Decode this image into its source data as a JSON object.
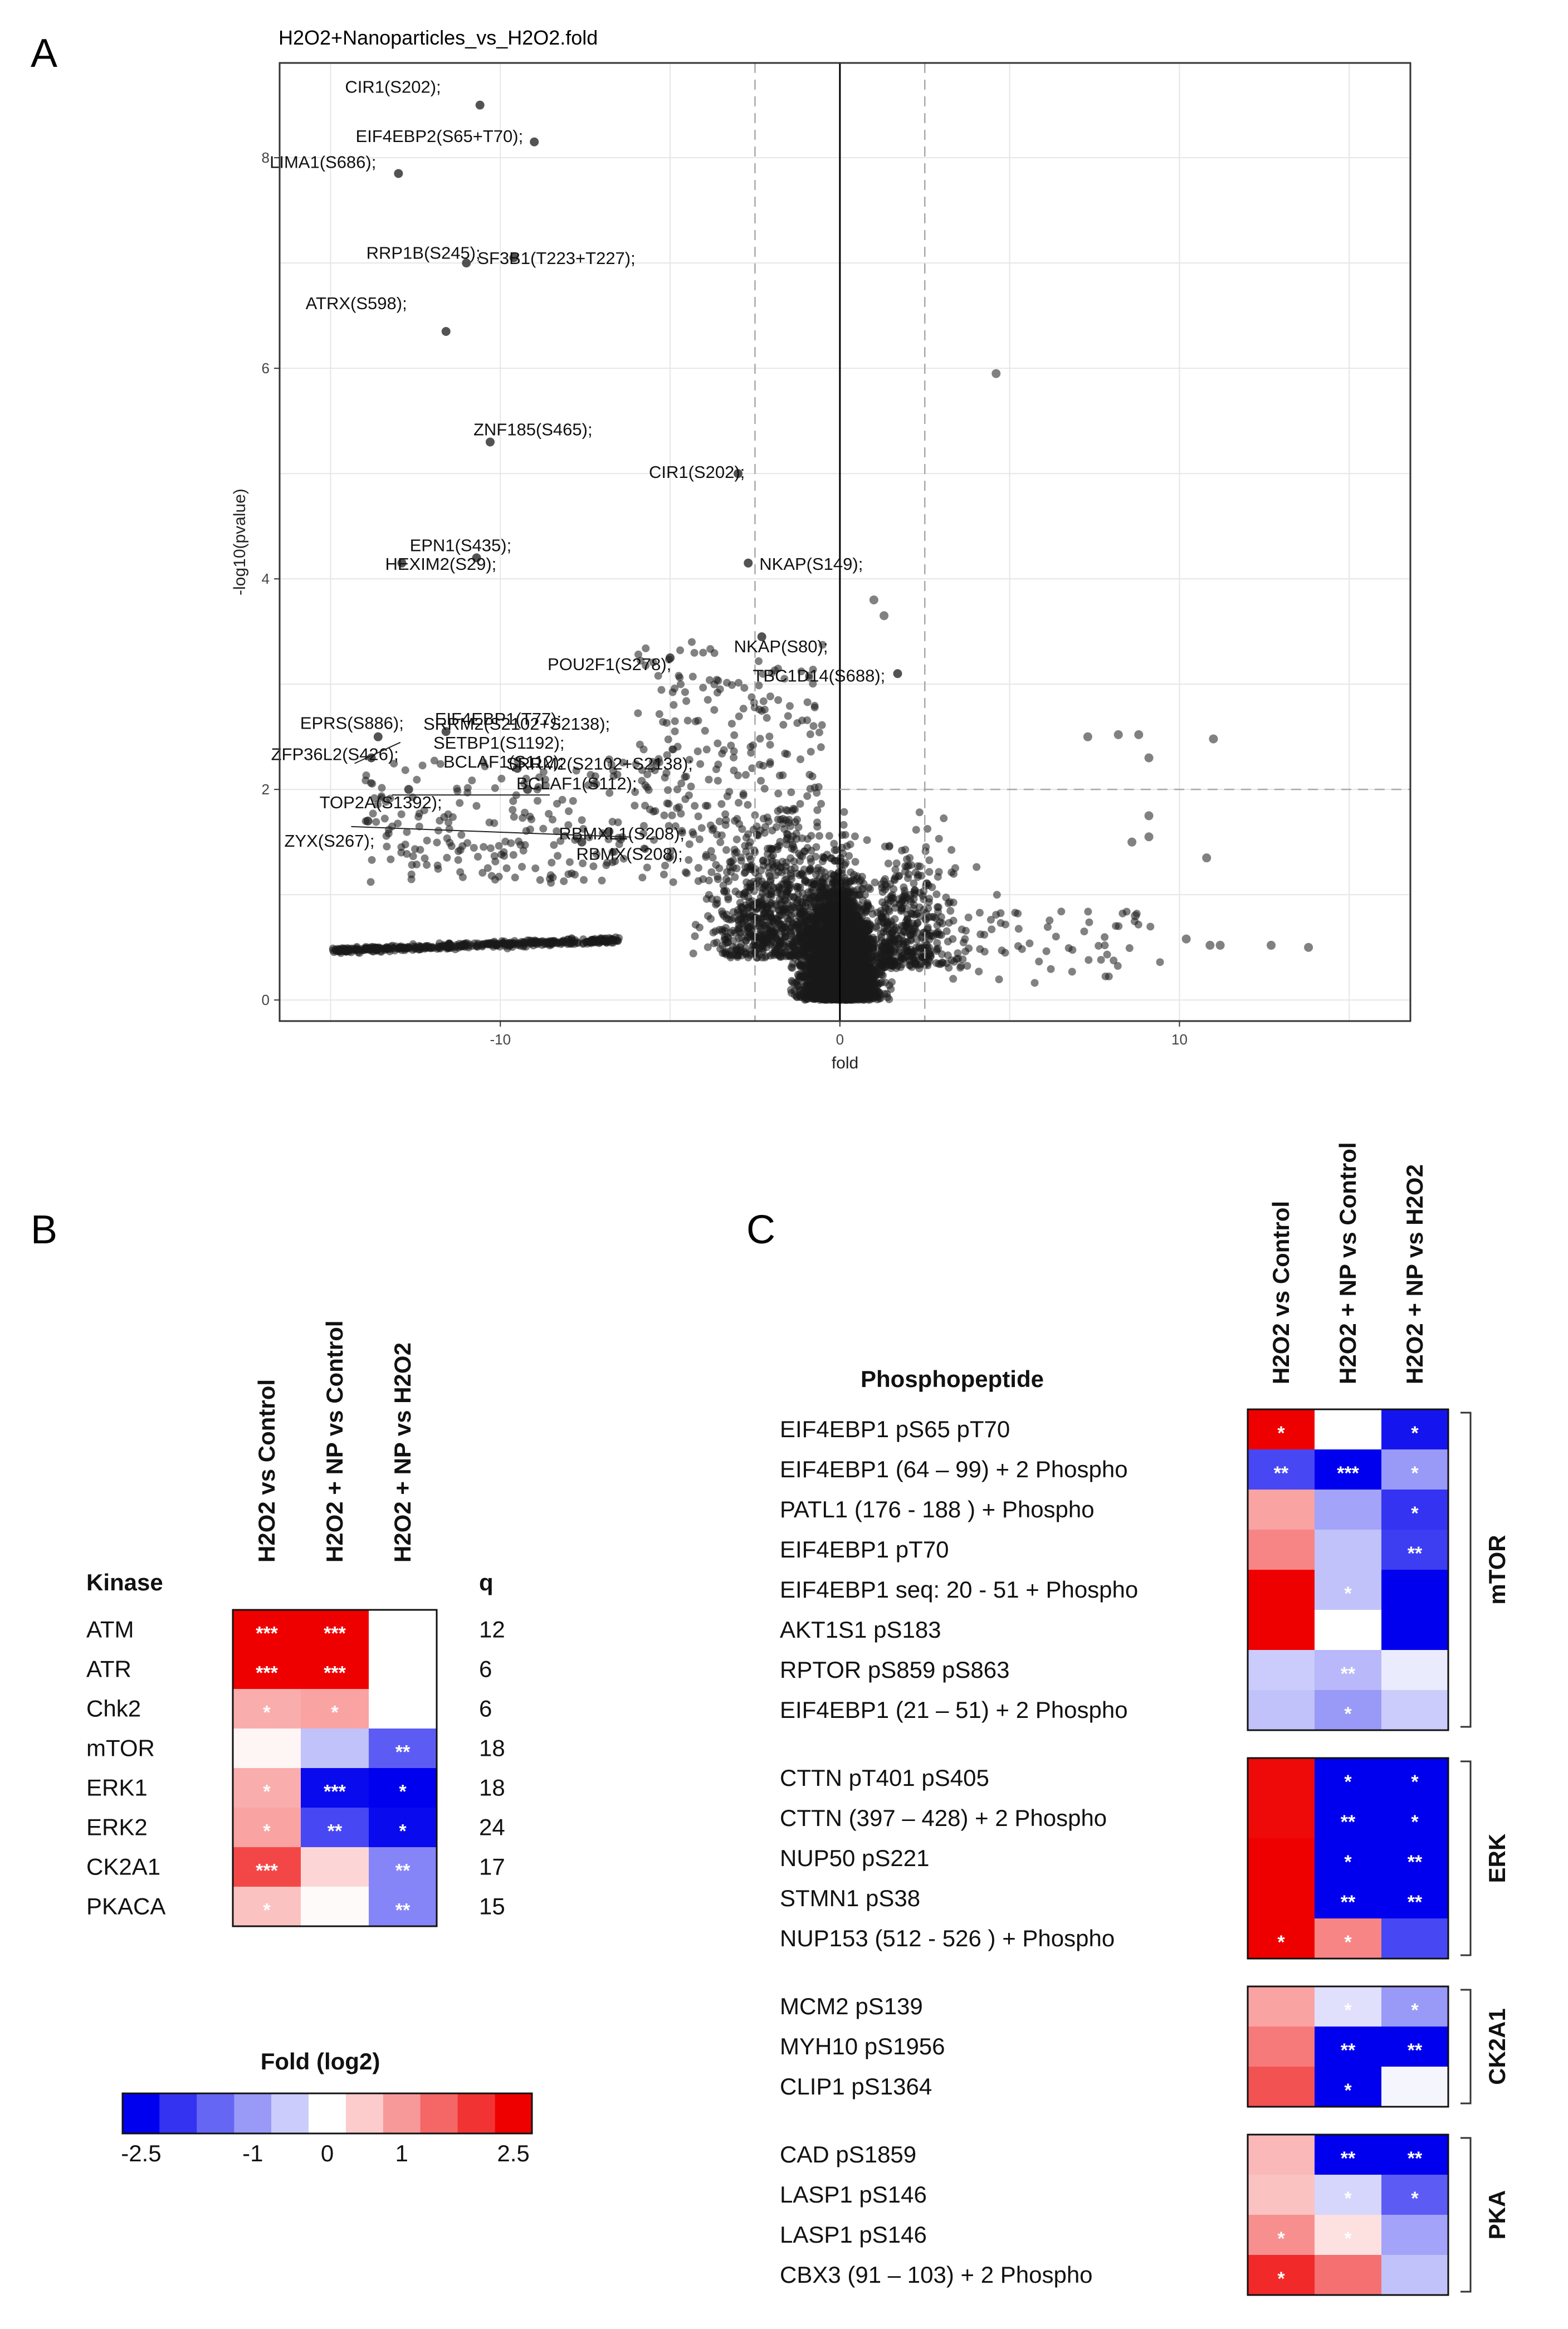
{
  "panels": {
    "a": "A",
    "b": "B",
    "c": "C"
  },
  "chart_data": [
    {
      "type": "scatter",
      "title": "H2O2+Nanoparticles_vs_H2O2.fold",
      "xlabel": "fold",
      "ylabel": "-log10(pvalue)",
      "xlim": [
        -16.5,
        16.8
      ],
      "ylim": [
        -0.2,
        8.9
      ],
      "xticks": [
        -10,
        0,
        10
      ],
      "yticks": [
        0,
        2,
        4,
        6,
        8
      ],
      "vlines": [
        -2.5,
        0,
        2.5
      ],
      "hline": 2,
      "labeled_points": [
        {
          "label": "CIR1(S202);",
          "x": -10.6,
          "y": 8.5
        },
        {
          "label": "LIMA1(S686);",
          "x": -13.0,
          "y": 7.85
        },
        {
          "label": "EIF4EBP2(S65+T70);",
          "x": -9.0,
          "y": 8.15
        },
        {
          "label": "RRP1B(S245);",
          "x": -9.6,
          "y": 7.05
        },
        {
          "label": "SF3B1(T223+T227);",
          "x": -11.0,
          "y": 7.0
        },
        {
          "label": "ATRX(S598);",
          "x": -11.6,
          "y": 6.35
        },
        {
          "label": "ZNF185(S465);",
          "x": -10.3,
          "y": 5.3
        },
        {
          "label": "CIR1(S202);",
          "x": -3.0,
          "y": 5.0
        },
        {
          "label": "EPN1(S435);",
          "x": -10.7,
          "y": 4.2
        },
        {
          "label": "HEXIM2(S29);",
          "x": -12.9,
          "y": 4.15
        },
        {
          "label": "NKAP(S149);",
          "x": -2.7,
          "y": 4.15
        },
        {
          "label": "NKAP(S80);",
          "x": -2.3,
          "y": 3.45
        },
        {
          "label": "POU2F1(S278);",
          "x": -5.0,
          "y": 3.25
        },
        {
          "label": "TBC1D14(S688);",
          "x": 1.7,
          "y": 3.1
        },
        {
          "label": "EPRS(S886);",
          "x": -13.6,
          "y": 2.5
        },
        {
          "label": "EIF4EBP1(T77);",
          "x": -11.6,
          "y": 2.55
        },
        {
          "label": "ZFP36L2(S426);",
          "x": -13.8,
          "y": 2.3
        },
        {
          "label": "SRRM2(S2102+S2138);",
          "x": -9.5,
          "y": 2.2
        },
        {
          "label": "BCLAF1(S112);",
          "x": -9.2,
          "y": 2.0
        },
        {
          "label": "TOP2A(S1392);",
          "x": -12.7,
          "y": 2.0
        },
        {
          "label": "ZYX(S267);",
          "x": -13.9,
          "y": 1.7
        },
        {
          "label": "RBMXL1(S208);",
          "x": -6.8,
          "y": 1.6
        },
        {
          "label": "RBMX(S208);",
          "x": -7.6,
          "y": 1.5
        }
      ],
      "overlap_labels": [
        "SRRM2(S2102+S2138);",
        "SETBP1(S1192);",
        "BCLAF1(S112);"
      ],
      "extra_points": [
        {
          "x": 4.6,
          "y": 5.95
        },
        {
          "x": 1.3,
          "y": 3.65
        },
        {
          "x": 1.0,
          "y": 3.8
        },
        {
          "x": 7.3,
          "y": 2.5
        },
        {
          "x": 8.2,
          "y": 2.52
        },
        {
          "x": 8.8,
          "y": 2.52
        },
        {
          "x": 9.1,
          "y": 2.3
        },
        {
          "x": 11.0,
          "y": 2.48
        },
        {
          "x": 9.1,
          "y": 1.75
        },
        {
          "x": 8.6,
          "y": 1.5
        },
        {
          "x": 9.1,
          "y": 1.55
        },
        {
          "x": 10.8,
          "y": 1.35
        },
        {
          "x": 8.7,
          "y": 0.8
        },
        {
          "x": 13.8,
          "y": 0.5
        },
        {
          "x": 12.7,
          "y": 0.52
        },
        {
          "x": 10.9,
          "y": 0.52
        },
        {
          "x": 11.2,
          "y": 0.52
        },
        {
          "x": 10.2,
          "y": 0.58
        }
      ]
    },
    {
      "type": "heatmap",
      "name": "kinase",
      "row_header": "Kinase",
      "q_header": "q",
      "columns": [
        "H2O2 vs Control",
        "H2O2 + NP vs Control",
        "H2O2 + NP  vs H2O2"
      ],
      "rows": [
        "ATM",
        "ATR",
        "Chk2",
        "mTOR",
        "ERK1",
        "ERK2",
        "CK2A1",
        "PKACA"
      ],
      "q": [
        12,
        6,
        6,
        18,
        18,
        24,
        17,
        15
      ],
      "values": [
        [
          2.5,
          2.5,
          0
        ],
        [
          2.5,
          2.5,
          0
        ],
        [
          0.8,
          0.9,
          0
        ],
        [
          0.1,
          -0.6,
          -1.6
        ],
        [
          0.8,
          -2.4,
          -2.5
        ],
        [
          0.9,
          -1.8,
          -2.4
        ],
        [
          1.8,
          0.4,
          -1.2
        ],
        [
          0.6,
          0.05,
          -1.2
        ]
      ],
      "stars": [
        [
          "***",
          "***",
          ""
        ],
        [
          "***",
          "***",
          ""
        ],
        [
          "*",
          "*",
          ""
        ],
        [
          "",
          "",
          "**"
        ],
        [
          "*",
          "***",
          "*"
        ],
        [
          "*",
          "**",
          "*"
        ],
        [
          "***",
          "",
          "**"
        ],
        [
          "*",
          "",
          "**"
        ]
      ]
    },
    {
      "type": "heatmap",
      "name": "phosphopeptide",
      "row_header": "Phosphopeptide",
      "columns": [
        "H2O2 vs Control",
        "H2O2 + NP vs Control",
        "H2O2 + NP vs H2O2"
      ],
      "groups": [
        {
          "name": "mTOR",
          "rows": [
            {
              "label": "EIF4EBP1 pS65 pT70",
              "values": [
                2.5,
                0,
                -2.3
              ],
              "stars": [
                "*",
                "",
                "*"
              ]
            },
            {
              "label": "EIF4EBP1  (64 – 99)  + 2 Phospho",
              "values": [
                -1.8,
                -2.5,
                -1.0
              ],
              "stars": [
                "**",
                "***",
                "*"
              ]
            },
            {
              "label": "PATL1 (176 - 188 ) + Phospho",
              "values": [
                0.9,
                -0.9,
                -2.0
              ],
              "stars": [
                "",
                "",
                "*"
              ]
            },
            {
              "label": "EIF4EBP1 pT70",
              "values": [
                1.2,
                -0.6,
                -1.9
              ],
              "stars": [
                "",
                "",
                "**"
              ]
            },
            {
              "label": "EIF4EBP1 seq: 20 - 51  + Phospho",
              "values": [
                2.5,
                -0.6,
                -2.5
              ],
              "stars": [
                "",
                "*",
                ""
              ]
            },
            {
              "label": "AKT1S1 pS183",
              "values": [
                2.5,
                0,
                -2.5
              ],
              "stars": [
                "",
                "",
                ""
              ]
            },
            {
              "label": "RPTOR pS859 pS863",
              "values": [
                -0.5,
                -0.7,
                -0.2
              ],
              "stars": [
                "",
                "**",
                ""
              ]
            },
            {
              "label": "EIF4EBP1 (21 – 51)  + 2 Phospho",
              "values": [
                -0.6,
                -1.0,
                -0.5
              ],
              "stars": [
                "",
                "*",
                ""
              ]
            }
          ]
        },
        {
          "name": "ERK",
          "rows": [
            {
              "label": "CTTN pT401 pS405",
              "values": [
                2.4,
                -2.5,
                -2.5
              ],
              "stars": [
                "",
                "*",
                "*"
              ]
            },
            {
              "label": "CTTN (397 – 428)  + 2 Phospho",
              "values": [
                2.4,
                -2.5,
                -2.5
              ],
              "stars": [
                "",
                "**",
                "*"
              ]
            },
            {
              "label": "NUP50 pS221",
              "values": [
                2.5,
                -2.5,
                -2.5
              ],
              "stars": [
                "",
                "*",
                "**"
              ]
            },
            {
              "label": "STMN1 pS38",
              "values": [
                2.5,
                -2.5,
                -2.5
              ],
              "stars": [
                "",
                "**",
                "**"
              ]
            },
            {
              "label": "NUP153 (512 - 526 ) + Phospho",
              "values": [
                2.5,
                1.2,
                -1.8
              ],
              "stars": [
                "*",
                "*",
                ""
              ]
            }
          ]
        },
        {
          "name": "CK2A1",
          "rows": [
            {
              "label": "MCM2 pS139",
              "values": [
                0.9,
                -0.3,
                -1.0
              ],
              "stars": [
                "",
                "*",
                "*"
              ]
            },
            {
              "label": "MYH10 pS1956",
              "values": [
                1.3,
                -2.5,
                -2.5
              ],
              "stars": [
                "",
                "**",
                "**"
              ]
            },
            {
              "label": "CLIP1 pS1364",
              "values": [
                1.7,
                -2.5,
                -0.1
              ],
              "stars": [
                "",
                "*",
                ""
              ]
            }
          ]
        },
        {
          "name": "PKA",
          "rows": [
            {
              "label": "CAD pS1859",
              "values": [
                0.7,
                -2.5,
                -2.5
              ],
              "stars": [
                "",
                "**",
                "**"
              ]
            },
            {
              "label": "LASP1 pS146",
              "values": [
                0.6,
                -0.4,
                -1.6
              ],
              "stars": [
                "",
                "*",
                "*"
              ]
            },
            {
              "label": "LASP1 pS146",
              "values": [
                1.1,
                0.3,
                -0.9
              ],
              "stars": [
                "*",
                "*",
                ""
              ]
            },
            {
              "label": "CBX3 (91 – 103)  + 2 Phospho",
              "values": [
                2.1,
                1.4,
                -0.6
              ],
              "stars": [
                "*",
                "",
                ""
              ]
            }
          ]
        }
      ]
    }
  ],
  "legend": {
    "title": "Fold (log2)",
    "tick_labels": [
      "-2.5",
      "-1",
      "0",
      "1",
      "2.5"
    ],
    "tick_values": [
      -2.5,
      -1,
      0,
      1,
      2.5
    ],
    "steps": [
      -2.5,
      -2.0,
      -1.5,
      -1.0,
      -0.5,
      0,
      0.5,
      1.0,
      1.5,
      2.0,
      2.5
    ]
  },
  "colors": {
    "neg": "#0000ee",
    "pos": "#ee0000",
    "mid": "#ffffff",
    "point": "#1a1a1a",
    "grid": "#e6e6e6"
  }
}
